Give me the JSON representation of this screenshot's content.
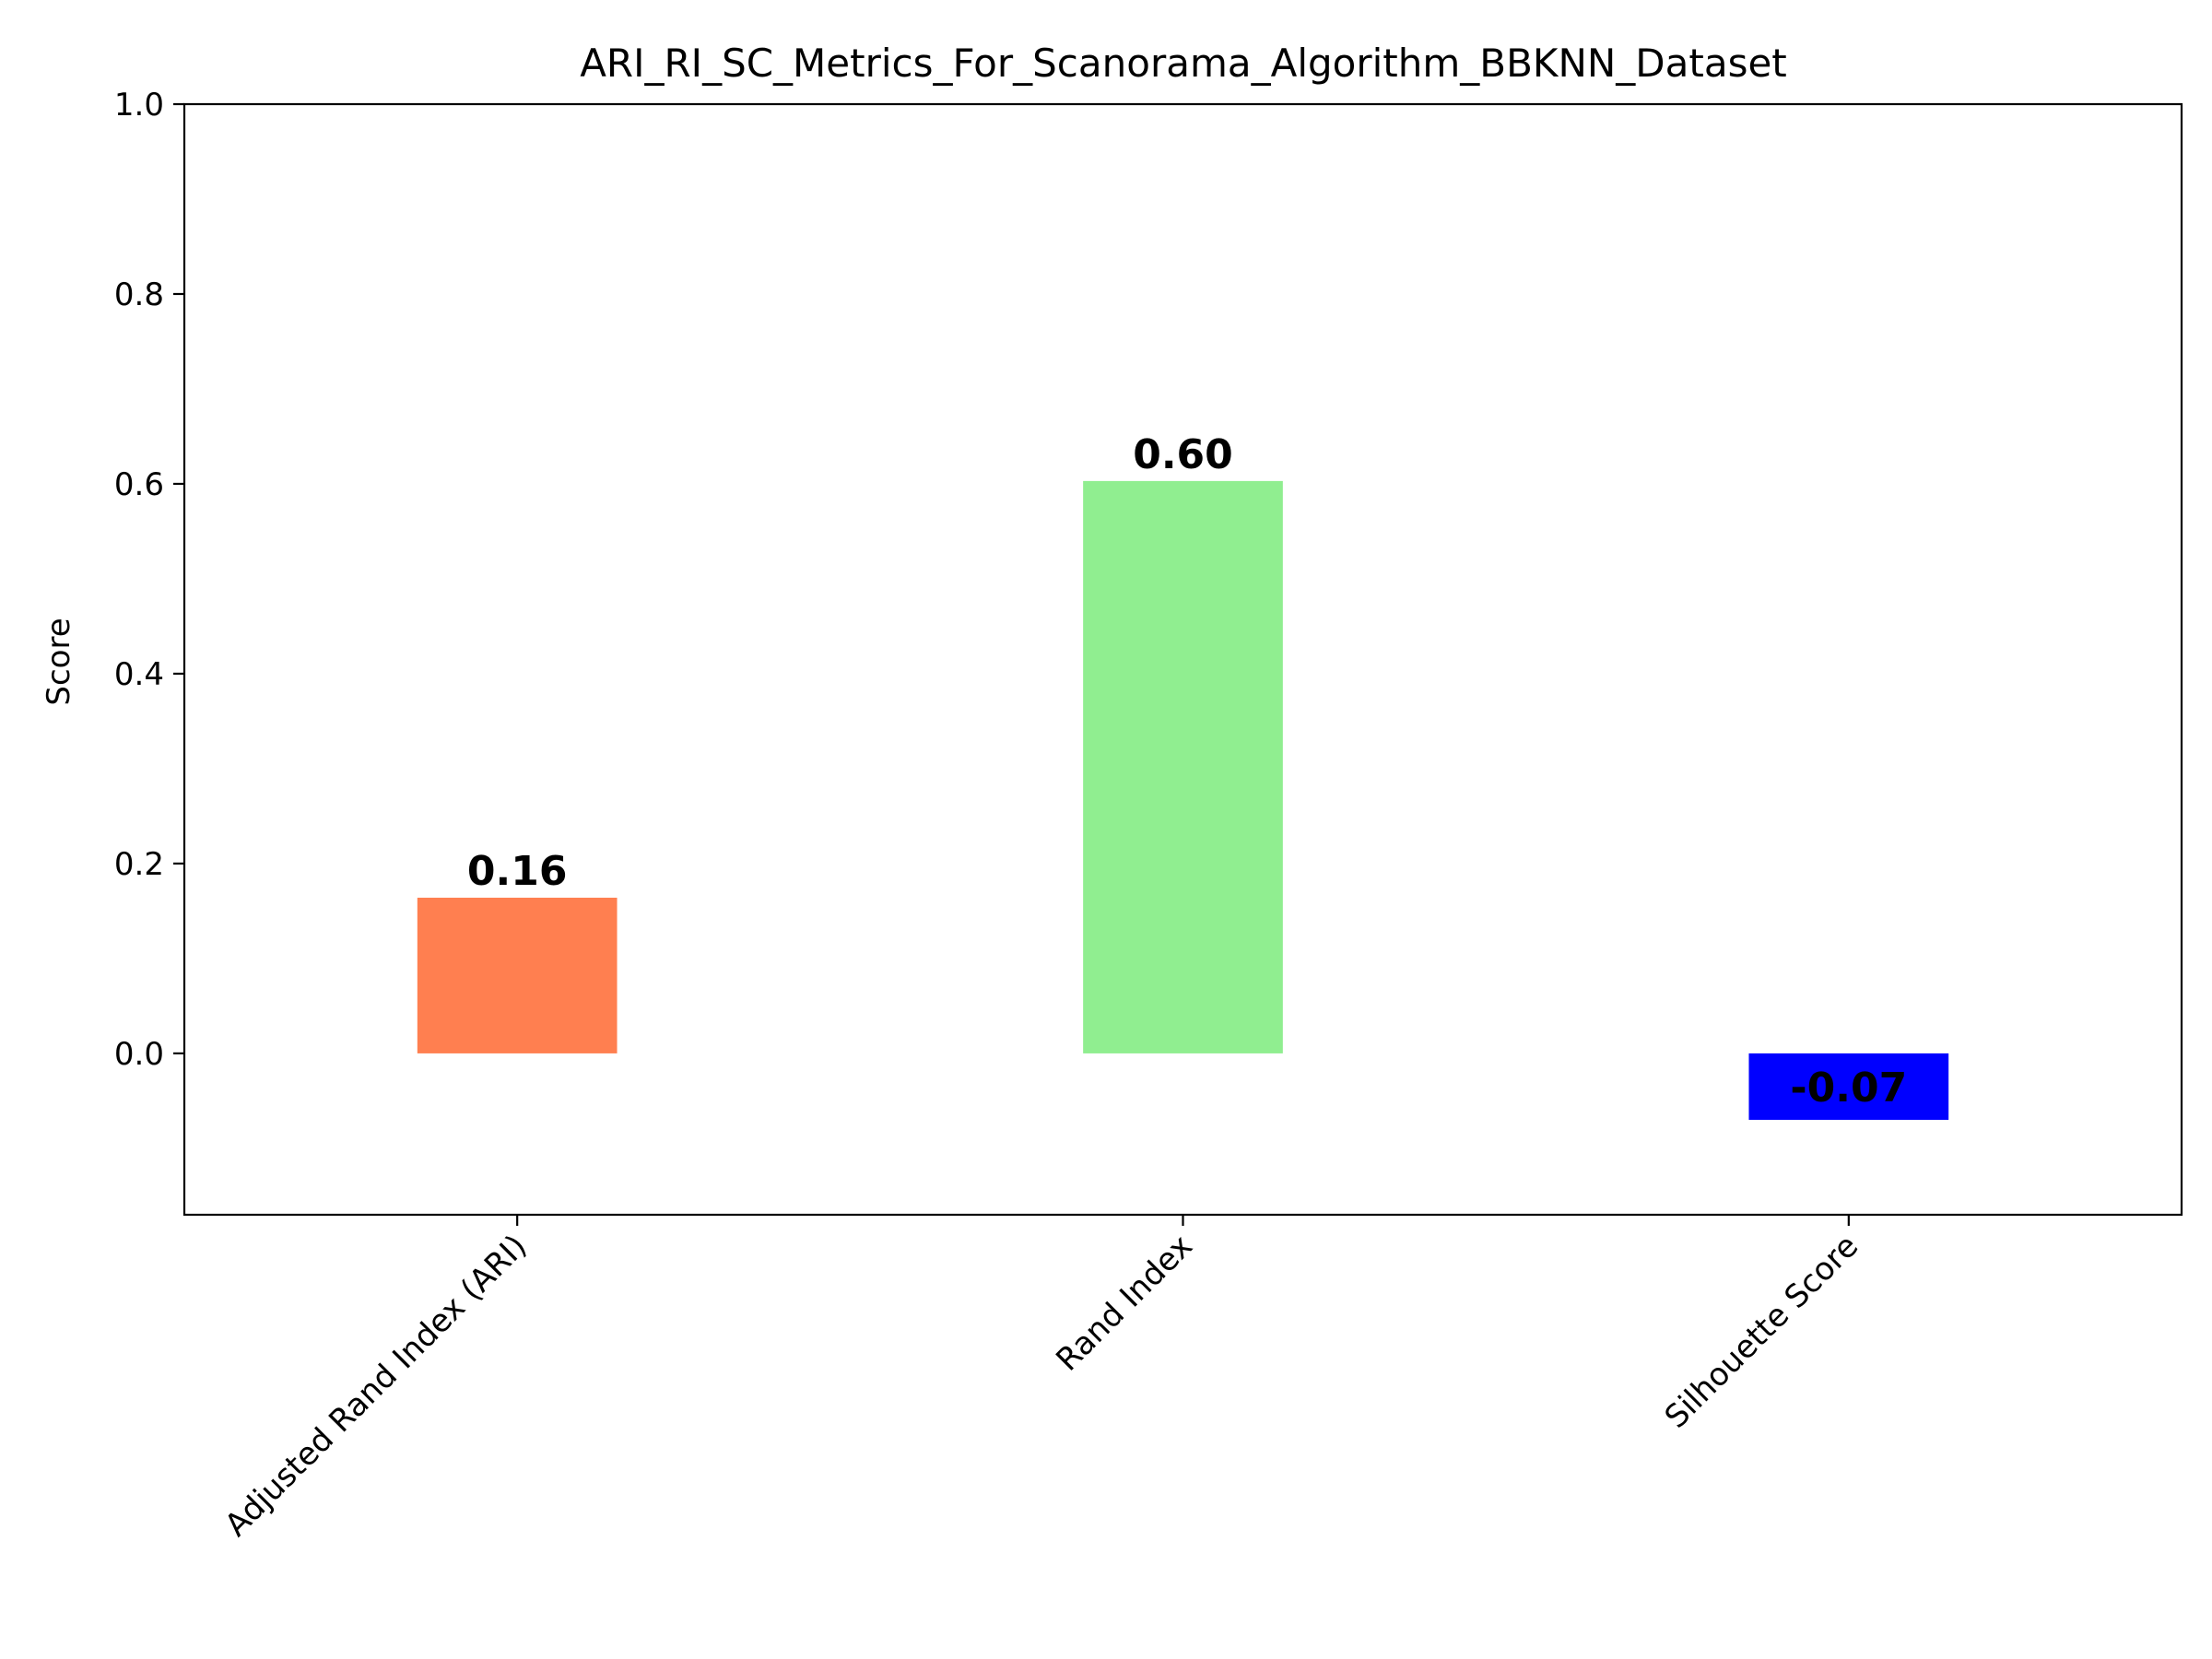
{
  "chart_data": {
    "type": "bar",
    "title": "ARI_RI_SC_Metrics_For_Scanorama_Algorithm_BBKNN_Dataset",
    "xlabel": "",
    "ylabel": "Score",
    "categories": [
      "Adjusted Rand Index (ARI)",
      "Rand Index",
      "Silhouette Score"
    ],
    "values": [
      0.164,
      0.603,
      -0.07
    ],
    "value_labels": [
      "0.16",
      "0.60",
      "-0.07"
    ],
    "colors": [
      "#ff7f50",
      "#90ee90",
      "#0000ff"
    ],
    "ylim": [
      -0.17,
      1.0
    ],
    "yticks": [
      0.0,
      0.2,
      0.4,
      0.6,
      0.8,
      1.0
    ],
    "ytick_labels": [
      "0.0",
      "0.2",
      "0.4",
      "0.6",
      "0.8",
      "1.0"
    ],
    "grid": false,
    "legend": "none",
    "xtick_rotation_deg": 45
  }
}
